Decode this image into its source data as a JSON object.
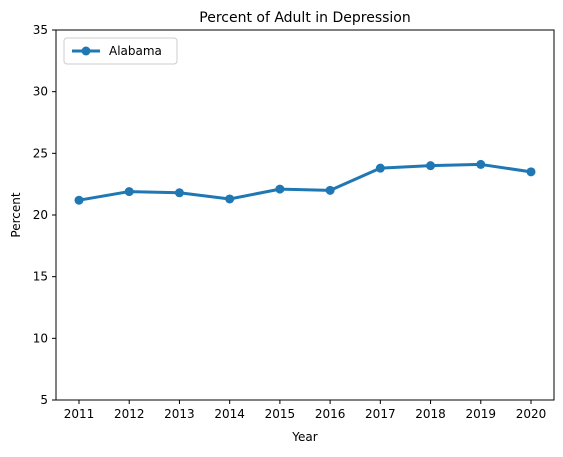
{
  "chart_data": {
    "type": "line",
    "title": "Percent of Adult in Depression",
    "xlabel": "Year",
    "ylabel": "Percent",
    "x": [
      "2011",
      "2012",
      "2013",
      "2014",
      "2015",
      "2016",
      "2017",
      "2018",
      "2019",
      "2020"
    ],
    "ylim": [
      5,
      35
    ],
    "yticks": [
      5,
      10,
      15,
      20,
      25,
      30,
      35
    ],
    "grid": false,
    "legend_position": "top-left",
    "series": [
      {
        "name": "Alabama",
        "color": "#1f77b4",
        "marker": "circle",
        "values": [
          21.2,
          21.9,
          21.8,
          21.3,
          22.1,
          22.0,
          23.8,
          24.0,
          24.1,
          23.5
        ]
      }
    ]
  }
}
